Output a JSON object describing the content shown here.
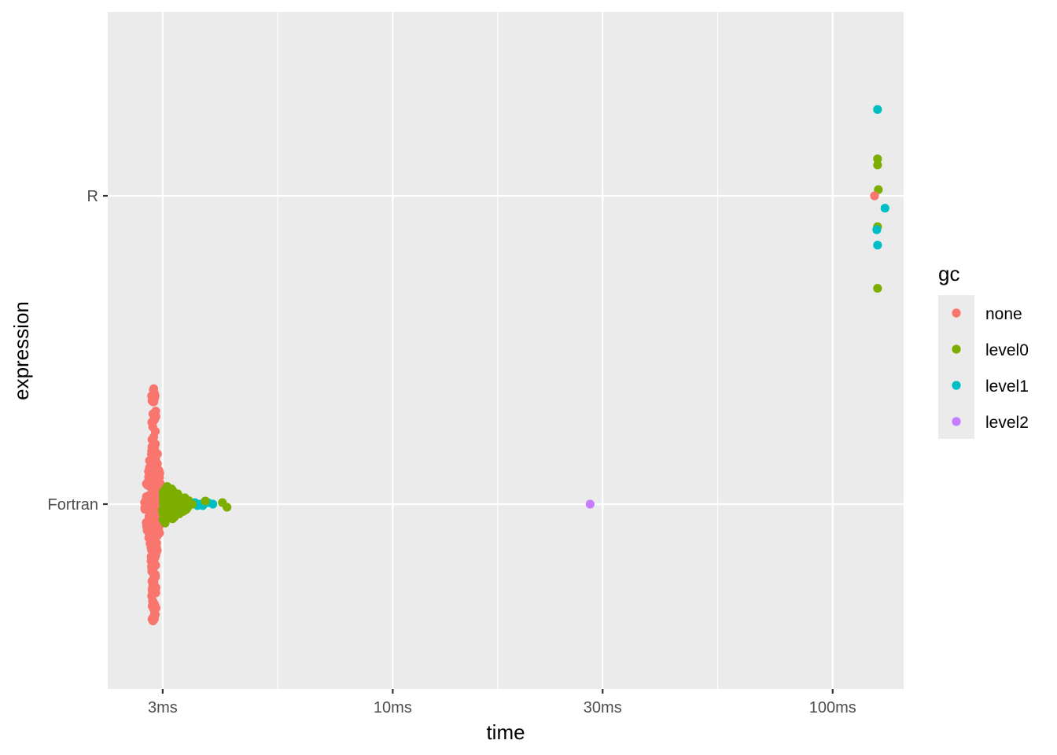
{
  "chart_data": {
    "type": "scatter",
    "xlabel": "time",
    "ylabel": "expression",
    "x_scale": "log10",
    "x_unit": "ms",
    "xlim": [
      2.25,
      145
    ],
    "x_ticks": [
      {
        "value": 3,
        "label": "3ms"
      },
      {
        "value": 10,
        "label": "10ms"
      },
      {
        "value": 30,
        "label": "30ms"
      },
      {
        "value": 100,
        "label": "100ms"
      }
    ],
    "categories": [
      "Fortran",
      "R"
    ],
    "legend": {
      "title": "gc",
      "position": "right",
      "entries": [
        {
          "key": "none",
          "label": "none",
          "color": "#F8766D"
        },
        {
          "key": "level0",
          "label": "level0",
          "color": "#7CAE00"
        },
        {
          "key": "level1",
          "label": "level1",
          "color": "#00BFC4"
        },
        {
          "key": "level2",
          "label": "level2",
          "color": "#C77CFF"
        }
      ]
    },
    "grid": true,
    "series": [
      {
        "category": "R",
        "points": [
          {
            "time": 126.5,
            "offset": 0.28,
            "gc": "level1"
          },
          {
            "time": 126.5,
            "offset": 0.12,
            "gc": "level0"
          },
          {
            "time": 126.5,
            "offset": 0.1,
            "gc": "level0"
          },
          {
            "time": 127.0,
            "offset": 0.02,
            "gc": "level0"
          },
          {
            "time": 124.5,
            "offset": 0.0,
            "gc": "none"
          },
          {
            "time": 131.5,
            "offset": -0.04,
            "gc": "level1"
          },
          {
            "time": 126.5,
            "offset": -0.1,
            "gc": "level0"
          },
          {
            "time": 126.0,
            "offset": -0.11,
            "gc": "level1"
          },
          {
            "time": 126.5,
            "offset": -0.16,
            "gc": "level1"
          },
          {
            "time": 126.5,
            "offset": -0.3,
            "gc": "level0"
          }
        ]
      },
      {
        "category": "Fortran",
        "points": [
          {
            "time": 28.1,
            "offset": 0.0,
            "gc": "level2"
          },
          {
            "time": 4.2,
            "offset": -0.01,
            "gc": "level0"
          },
          {
            "time": 4.1,
            "offset": 0.005,
            "gc": "level0"
          },
          {
            "time": 3.9,
            "offset": 0.0,
            "gc": "level1"
          },
          {
            "time": 3.8,
            "offset": 0.005,
            "gc": "level1"
          },
          {
            "time": 3.7,
            "offset": -0.005,
            "gc": "level1"
          },
          {
            "time": 3.65,
            "offset": 0.0,
            "gc": "level1"
          },
          {
            "time": 3.55,
            "offset": 0.005,
            "gc": "level1"
          },
          {
            "time": 3.6,
            "offset": -0.005,
            "gc": "level1"
          },
          {
            "time": 3.75,
            "offset": 0.01,
            "gc": "level0"
          },
          {
            "time": 3.5,
            "offset": 0.0,
            "gc": "level0"
          }
        ],
        "dense_clusters": [
          {
            "gc": "none",
            "time_range": [
              2.75,
              2.98
            ],
            "offset_range": [
              -0.39,
              0.38
            ],
            "n": 240
          },
          {
            "gc": "level0",
            "time_range": [
              3.0,
              3.45
            ],
            "offset_range": [
              -0.07,
              0.07
            ],
            "n": 110
          }
        ]
      }
    ]
  }
}
